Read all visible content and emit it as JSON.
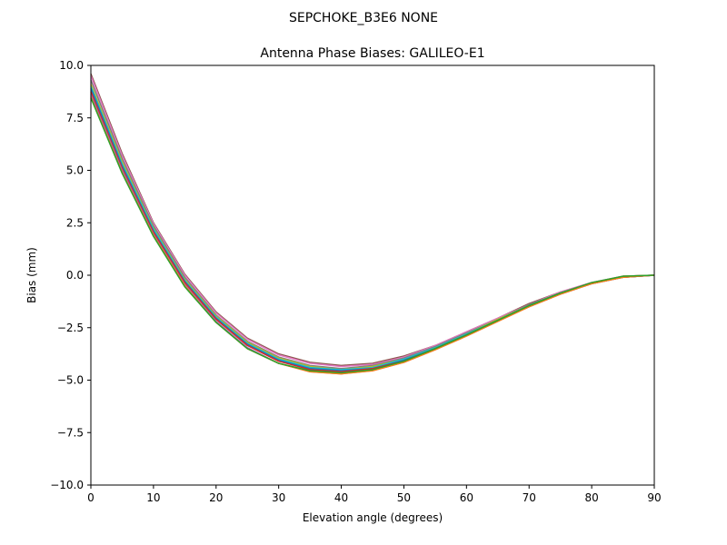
{
  "figure": {
    "suptitle": "SEPCHOKE_B3E6   NONE"
  },
  "chart_data": {
    "type": "line",
    "title": "Antenna Phase Biases: GALILEO-E1",
    "xlabel": "Elevation angle (degrees)",
    "ylabel": "Bias (mm)",
    "xlim": [
      0,
      90
    ],
    "ylim": [
      -10,
      10
    ],
    "xticks": [
      0,
      10,
      20,
      30,
      40,
      50,
      60,
      70,
      80,
      90
    ],
    "xtick_labels": [
      "0",
      "10",
      "20",
      "30",
      "40",
      "50",
      "60",
      "70",
      "80",
      "90"
    ],
    "yticks": [
      10,
      7.5,
      5,
      2.5,
      0,
      -2.5,
      -5,
      -7.5,
      -10
    ],
    "ytick_labels": [
      "10.0",
      "7.5",
      "5.0",
      "2.5",
      "0.0",
      "−2.5",
      "−5.0",
      "−7.5",
      "−10.0"
    ],
    "grid": false,
    "legend": "none",
    "x": [
      0,
      5,
      10,
      15,
      20,
      25,
      30,
      35,
      40,
      45,
      50,
      55,
      60,
      65,
      70,
      75,
      80,
      85,
      90
    ],
    "series": [
      {
        "color": "#8c564b",
        "values": [
          9.6,
          5.8,
          2.5,
          0.05,
          -1.75,
          -3.0,
          -3.75,
          -4.15,
          -4.3,
          -4.2,
          -3.85,
          -3.35,
          -2.7,
          -2.05,
          -1.35,
          -0.8,
          -0.35,
          -0.05,
          0.0
        ]
      },
      {
        "color": "#e377c2",
        "values": [
          9.5,
          5.7,
          2.45,
          0.0,
          -1.8,
          -3.05,
          -3.8,
          -4.2,
          -4.35,
          -4.25,
          -3.9,
          -3.35,
          -2.7,
          -2.05,
          -1.4,
          -0.8,
          -0.35,
          -0.05,
          0.0
        ]
      },
      {
        "color": "#7f7f7f",
        "values": [
          9.3,
          5.55,
          2.35,
          -0.1,
          -1.9,
          -3.15,
          -3.9,
          -4.3,
          -4.45,
          -4.3,
          -3.95,
          -3.4,
          -2.75,
          -2.1,
          -1.4,
          -0.85,
          -0.4,
          -0.05,
          0.0
        ]
      },
      {
        "color": "#bcbd22",
        "values": [
          9.1,
          5.4,
          2.25,
          -0.2,
          -1.95,
          -3.2,
          -3.95,
          -4.35,
          -4.5,
          -4.35,
          -4.0,
          -3.45,
          -2.8,
          -2.1,
          -1.45,
          -0.85,
          -0.4,
          -0.05,
          0.0
        ]
      },
      {
        "color": "#17becf",
        "values": [
          9.0,
          5.3,
          2.2,
          -0.25,
          -2.0,
          -3.25,
          -4.0,
          -4.4,
          -4.5,
          -4.4,
          -4.0,
          -3.45,
          -2.8,
          -2.15,
          -1.45,
          -0.85,
          -0.4,
          -0.1,
          0.0
        ]
      },
      {
        "color": "#1f77b4",
        "values": [
          8.9,
          5.2,
          2.1,
          -0.3,
          -2.05,
          -3.3,
          -4.05,
          -4.45,
          -4.55,
          -4.45,
          -4.05,
          -3.5,
          -2.85,
          -2.15,
          -1.45,
          -0.9,
          -0.4,
          -0.1,
          0.0
        ]
      },
      {
        "color": "#d62728",
        "values": [
          8.75,
          5.1,
          2.05,
          -0.35,
          -2.1,
          -3.35,
          -4.1,
          -4.5,
          -4.6,
          -4.45,
          -4.1,
          -3.5,
          -2.85,
          -2.15,
          -1.5,
          -0.9,
          -0.4,
          -0.1,
          0.0
        ]
      },
      {
        "color": "#9467bd",
        "values": [
          8.6,
          5.0,
          1.95,
          -0.45,
          -2.2,
          -3.45,
          -4.2,
          -4.6,
          -4.7,
          -4.55,
          -4.15,
          -3.55,
          -2.9,
          -2.2,
          -1.5,
          -0.9,
          -0.4,
          -0.1,
          0.0
        ]
      },
      {
        "color": "#ff7f0e",
        "values": [
          8.5,
          4.9,
          1.9,
          -0.5,
          -2.25,
          -3.5,
          -4.2,
          -4.6,
          -4.7,
          -4.55,
          -4.15,
          -3.55,
          -2.9,
          -2.2,
          -1.5,
          -0.9,
          -0.4,
          -0.1,
          0.0
        ]
      },
      {
        "color": "#2ca02c",
        "values": [
          8.45,
          4.85,
          1.85,
          -0.55,
          -2.25,
          -3.5,
          -4.2,
          -4.55,
          -4.65,
          -4.5,
          -4.1,
          -3.5,
          -2.85,
          -2.15,
          -1.45,
          -0.85,
          -0.35,
          -0.05,
          0.0
        ]
      }
    ]
  }
}
